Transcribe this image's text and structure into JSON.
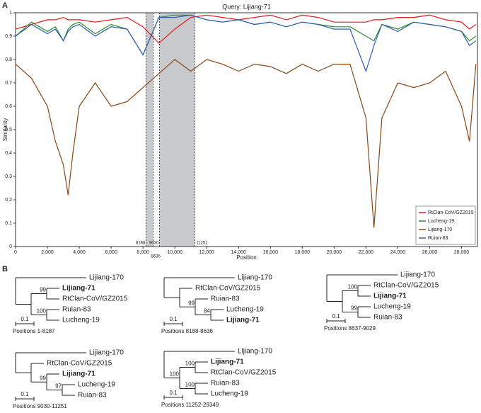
{
  "panels": [
    "A",
    "B"
  ],
  "chart_data": {
    "type": "line",
    "title": "Query: Lijiang-71",
    "xlabel": "Position",
    "ylabel": "Similarity",
    "x": [
      0,
      1000,
      2000,
      2500,
      3000,
      3300,
      3600,
      4000,
      5000,
      6000,
      7000,
      8000,
      9000,
      10000,
      11000,
      12000,
      13000,
      14000,
      15000,
      16000,
      17000,
      18000,
      19000,
      20000,
      21000,
      22000,
      22500,
      23000,
      24000,
      25000,
      26000,
      27000,
      28000,
      28500,
      28900
    ],
    "series": [
      {
        "name": "RtClan-CoV/GZ2015",
        "color": "#e41a1c",
        "values": [
          0.93,
          0.95,
          0.97,
          0.97,
          0.98,
          0.97,
          0.97,
          0.97,
          0.96,
          0.97,
          0.98,
          0.94,
          0.87,
          0.93,
          0.98,
          0.99,
          0.98,
          0.97,
          0.98,
          0.99,
          0.97,
          0.99,
          0.98,
          0.96,
          0.96,
          0.96,
          0.97,
          0.97,
          0.98,
          0.98,
          0.99,
          0.97,
          0.96,
          0.93,
          0.95
        ]
      },
      {
        "name": "Lucheng-19",
        "color": "#2e8b2e",
        "values": [
          0.9,
          0.96,
          0.92,
          0.94,
          0.88,
          0.93,
          0.95,
          0.96,
          0.91,
          0.95,
          0.93,
          0.82,
          0.98,
          0.99,
          0.99,
          0.97,
          0.96,
          0.97,
          0.95,
          0.96,
          0.94,
          0.96,
          0.95,
          0.94,
          0.94,
          0.9,
          0.88,
          0.95,
          0.93,
          0.96,
          0.95,
          0.94,
          0.92,
          0.88,
          0.9
        ]
      },
      {
        "name": "Lijiang-170",
        "color": "#8b4513",
        "values": [
          0.78,
          0.72,
          0.6,
          0.45,
          0.35,
          0.22,
          0.4,
          0.6,
          0.7,
          0.6,
          0.62,
          0.68,
          0.74,
          0.8,
          0.75,
          0.8,
          0.78,
          0.75,
          0.78,
          0.77,
          0.74,
          0.78,
          0.75,
          0.78,
          0.78,
          0.55,
          0.08,
          0.55,
          0.7,
          0.68,
          0.7,
          0.75,
          0.6,
          0.45,
          0.78
        ]
      },
      {
        "name": "Ruian-83",
        "color": "#2f5fb3",
        "values": [
          0.9,
          0.95,
          0.91,
          0.93,
          0.88,
          0.92,
          0.94,
          0.95,
          0.9,
          0.94,
          0.93,
          0.82,
          0.98,
          0.98,
          0.99,
          0.97,
          0.96,
          0.97,
          0.95,
          0.96,
          0.94,
          0.96,
          0.95,
          0.93,
          0.93,
          0.75,
          0.86,
          0.95,
          0.92,
          0.96,
          0.95,
          0.94,
          0.92,
          0.86,
          0.88
        ]
      }
    ],
    "xlim": [
      0,
      29000
    ],
    "ylim": [
      0,
      1
    ],
    "xticks": [
      0,
      {
        "value": 2000,
        "label": "2,000"
      },
      {
        "value": 4000,
        "label": "4,000"
      },
      {
        "value": 6000,
        "label": "6,000"
      },
      {
        "value": 8000,
        "label": "8,000"
      },
      {
        "value": 10000,
        "label": "10,000"
      },
      {
        "value": 12000,
        "label": "12,000"
      },
      {
        "value": 14000,
        "label": "14,000"
      },
      {
        "value": 16000,
        "label": "16,000"
      },
      {
        "value": 18000,
        "label": "18,000"
      },
      {
        "value": 20000,
        "label": "20,000"
      },
      {
        "value": 22000,
        "label": "22,000"
      },
      {
        "value": 24000,
        "label": "24,000"
      },
      {
        "value": 26000,
        "label": "26,000"
      },
      {
        "value": 28000,
        "label": "28,000"
      }
    ],
    "yticks": [
      0,
      0.1,
      0.2,
      0.3,
      0.4,
      0.5,
      0.6,
      0.7,
      0.8,
      0.9,
      1
    ],
    "regions": [
      [
        8188,
        8636
      ],
      [
        9030,
        11251
      ]
    ],
    "legend": "lower right"
  },
  "trees": [
    {
      "label": "Positions 1-8187",
      "scale": "0.1",
      "tree": {
        "children": [
          {
            "name": "Lijiang-170"
          },
          {
            "children": [
              {
                "support": 99,
                "children": [
                  {
                    "name": "Lijiang-71",
                    "bold": true
                  },
                  {
                    "name": "RtClan-CoV/GZ2015",
                    "color": "#e41a1c"
                  }
                ]
              },
              {
                "support": 100,
                "children": [
                  {
                    "name": "Ruian-83"
                  },
                  {
                    "name": "Lucheng-19",
                    "color": "#2e8b2e"
                  }
                ]
              }
            ]
          }
        ]
      }
    },
    {
      "label": "Positions 8188-8636",
      "scale": "0.1",
      "tree": {
        "children": [
          {
            "name": "Lijiang-170"
          },
          {
            "children": [
              {
                "name": "RtClan-CoV/GZ2015",
                "color": "#e41a1c"
              },
              {
                "support": 99,
                "children": [
                  {
                    "name": "Ruian-83"
                  },
                  {
                    "support": 84,
                    "children": [
                      {
                        "name": "Lucheng-19",
                        "color": "#2e8b2e"
                      },
                      {
                        "name": "Lijiang-71",
                        "bold": true
                      }
                    ]
                  }
                ]
              }
            ]
          }
        ]
      }
    },
    {
      "label": "Positions 8637-9029",
      "scale": "0.1",
      "tree": {
        "children": [
          {
            "name": "Lijiang-170"
          },
          {
            "children": [
              {
                "support": 100,
                "children": [
                  {
                    "name": "RtClan-CoV/GZ2015",
                    "color": "#e41a1c"
                  },
                  {
                    "name": "Lijiang-71",
                    "bold": true
                  }
                ]
              },
              {
                "support": 99,
                "children": [
                  {
                    "name": "Lucheng-19",
                    "color": "#2e8b2e"
                  },
                  {
                    "name": "Ruian-83"
                  }
                ]
              }
            ]
          }
        ]
      }
    },
    {
      "label": "Positions 9030-11251",
      "scale": "0.1",
      "tree": {
        "children": [
          {
            "name": "Lijiang-170"
          },
          {
            "children": [
              {
                "name": "RtClan-CoV/GZ2015",
                "color": "#e41a1c"
              },
              {
                "support": 99,
                "children": [
                  {
                    "name": "Lijiang-71",
                    "bold": true
                  },
                  {
                    "support": 97,
                    "children": [
                      {
                        "name": "Lucheng-19",
                        "color": "#2e8b2e"
                      },
                      {
                        "name": "Ruian-83"
                      }
                    ]
                  }
                ]
              }
            ]
          }
        ]
      }
    },
    {
      "label": "Positions 11252-29349",
      "scale": "0.1",
      "tree": {
        "children": [
          {
            "name": "Lijiang-170"
          },
          {
            "support": 100,
            "children": [
              {
                "support": 100,
                "children": [
                  {
                    "name": "Lijiang-71",
                    "bold": true
                  },
                  {
                    "name": "RtClan-CoV/GZ2015",
                    "color": "#e41a1c"
                  }
                ]
              },
              {
                "support": 100,
                "children": [
                  {
                    "name": "Ruian-83"
                  },
                  {
                    "name": "Lucheng-19",
                    "color": "#2e8b2e"
                  }
                ]
              }
            ]
          }
        ]
      }
    }
  ]
}
